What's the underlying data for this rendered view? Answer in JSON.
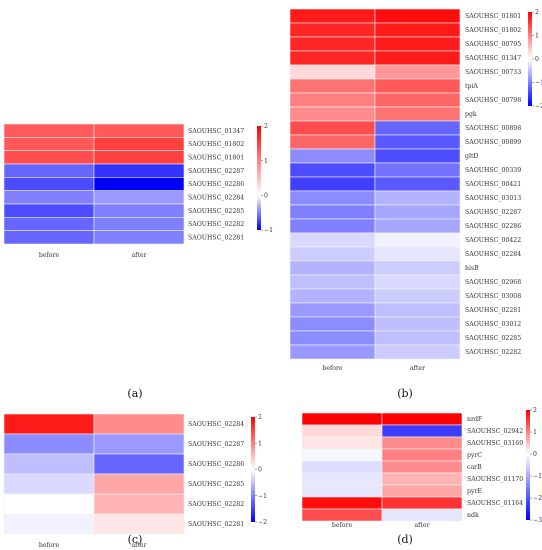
{
  "chart_data": [
    {
      "type": "heatmap",
      "panel_label": "(a)",
      "columns": [
        "before",
        "after"
      ],
      "rows": [
        "SAOUHSC_01347",
        "SAOUHSC_01802",
        "SAOUHSC_01801",
        "SAOUHSC_02287",
        "SAOUHSC_02286",
        "SAOUHSC_02284",
        "SAOUHSC_02285",
        "SAOUHSC_02282",
        "SAOUHSC_02281"
      ],
      "values": [
        [
          1.3,
          1.3
        ],
        [
          1.3,
          1.5
        ],
        [
          1.4,
          1.5
        ],
        [
          -0.6,
          -0.8
        ],
        [
          -0.7,
          -1.0
        ],
        [
          -0.5,
          -0.4
        ],
        [
          -0.7,
          -0.5
        ],
        [
          -0.6,
          -0.5
        ],
        [
          -0.6,
          -0.5
        ]
      ],
      "colorbar": {
        "min": -1,
        "max": 2,
        "ticks": [
          2,
          1,
          0,
          -1
        ],
        "colors": [
          "#0000ff",
          "#ffffff",
          "#ff0000"
        ]
      }
    },
    {
      "type": "heatmap",
      "panel_label": "(b)",
      "columns": [
        "before",
        "after"
      ],
      "rows": [
        "SAOUHSC_01801",
        "SAOUHSC_01802",
        "SAOUHSC_00795",
        "SAOUHSC_01347",
        "SAOUHSC_00733",
        "tpiA",
        "SAOUHSC_00798",
        "pgk",
        "SAOUHSC_00898",
        "SAOUHSC_00899",
        "gltD",
        "SAOUHSC_00339",
        "SAOUHSC_00421",
        "SAOUHSC_03013",
        "SAOUHSC_02287",
        "SAOUHSC_02286",
        "SAOUHSC_00422",
        "SAOUHSC_02284",
        "hisB",
        "SAOUHSC_02968",
        "SAOUHSC_03008",
        "SAOUHSC_02281",
        "SAOUHSC_03012",
        "SAOUHSC_02285",
        "SAOUHSC_02282"
      ],
      "values": [
        [
          1.8,
          1.9
        ],
        [
          1.7,
          1.8
        ],
        [
          1.7,
          1.8
        ],
        [
          1.7,
          1.8
        ],
        [
          0.3,
          0.8
        ],
        [
          1.1,
          1.3
        ],
        [
          1.0,
          1.2
        ],
        [
          0.9,
          1.1
        ],
        [
          1.4,
          -1.2
        ],
        [
          1.2,
          -1.3
        ],
        [
          -0.9,
          -1.4
        ],
        [
          -1.4,
          -1.1
        ],
        [
          -1.5,
          -1.3
        ],
        [
          -0.9,
          -0.6
        ],
        [
          -1.0,
          -0.7
        ],
        [
          -1.0,
          -0.7
        ],
        [
          -0.3,
          -0.1
        ],
        [
          -0.4,
          -0.2
        ],
        [
          -0.6,
          -0.4
        ],
        [
          -0.5,
          -0.3
        ],
        [
          -0.6,
          -0.4
        ],
        [
          -0.8,
          -0.5
        ],
        [
          -0.9,
          -0.5
        ],
        [
          -0.9,
          -0.5
        ],
        [
          -0.8,
          -0.4
        ]
      ],
      "colorbar": {
        "min": -2,
        "max": 2,
        "ticks": [
          2,
          1,
          0,
          -1,
          -2
        ],
        "colors": [
          "#0000ff",
          "#ffffff",
          "#ff0000"
        ]
      }
    },
    {
      "type": "heatmap",
      "panel_label": "(c)",
      "columns": [
        "before",
        "after"
      ],
      "rows": [
        "SAOUHSC_02284",
        "SAOUHSC_02287",
        "SAOUHSC_02286",
        "SAOUHSC_02285",
        "SAOUHSC_02282",
        "SAOUHSC_02281"
      ],
      "values": [
        [
          1.8,
          0.9
        ],
        [
          -0.9,
          -0.8
        ],
        [
          -0.5,
          -1.2
        ],
        [
          -0.3,
          0.7
        ],
        [
          0.0,
          0.6
        ],
        [
          -0.1,
          0.2
        ]
      ],
      "colorbar": {
        "min": -2,
        "max": 2,
        "ticks": [
          2,
          1,
          0,
          -1,
          -2
        ],
        "colors": [
          "#0000ff",
          "#ffffff",
          "#ff0000"
        ]
      }
    },
    {
      "type": "heatmap",
      "panel_label": "(d)",
      "columns": [
        "before",
        "after"
      ],
      "rows": [
        "nrdF",
        "SAOUHSC_02942",
        "SAOUHSC_03169",
        "pyrC",
        "carB",
        "SAOUHSC_01170",
        "pyrE",
        "SAOUHSC_01164",
        "ndk"
      ],
      "values": [
        [
          2.8,
          2.4
        ],
        [
          0.3,
          -2.3
        ],
        [
          0.2,
          0.9
        ],
        [
          -0.1,
          1.0
        ],
        [
          -0.4,
          0.9
        ],
        [
          -0.3,
          0.6
        ],
        [
          -0.3,
          0.7
        ],
        [
          1.9,
          1.6
        ],
        [
          1.4,
          -0.3
        ]
      ],
      "colorbar": {
        "min": -3,
        "max": 2,
        "ticks": [
          2,
          1,
          0,
          -1,
          -2,
          -3
        ],
        "colors": [
          "#0000ff",
          "#ffffff",
          "#ff0000"
        ]
      }
    }
  ]
}
